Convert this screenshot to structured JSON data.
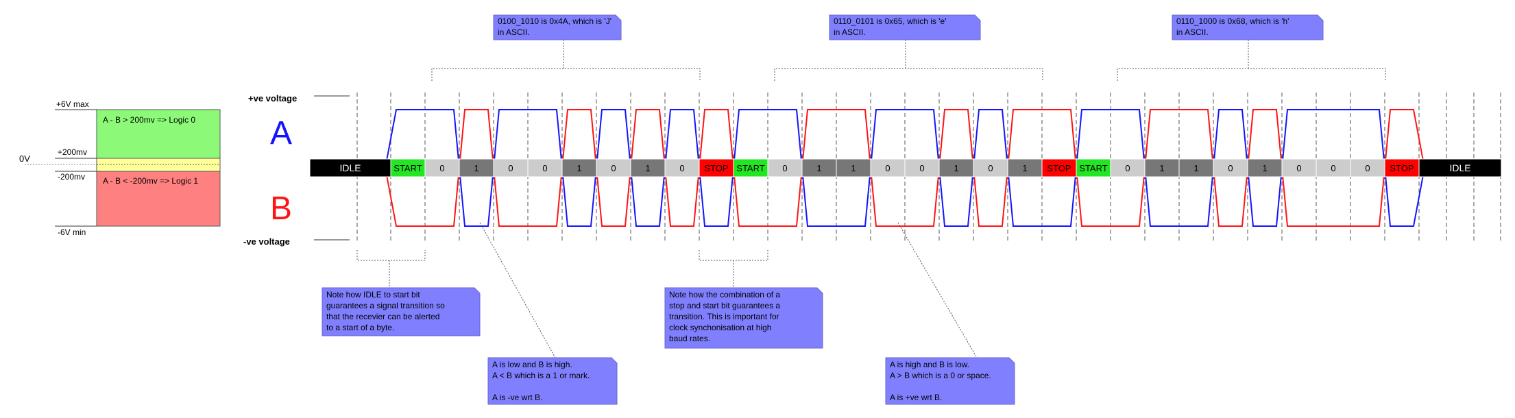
{
  "colors": {
    "wire_a": "#1414ff",
    "wire_b": "#ff1414",
    "idle_cell": "#000000",
    "start_cell": "#22e622",
    "stop_cell": "#ff0000",
    "bit0_cell": "#cccccc",
    "bit1_cell": "#777777",
    "note_bg": "#8080ff",
    "zone_logic0": "#8cfa78",
    "zone_threshold": "#ffff99",
    "zone_logic1": "#ff8080"
  },
  "legend": {
    "plus_6v": "+6V max",
    "plus_200mv": "+200mv",
    "zero_v": "0V",
    "minus_200mv": "-200mv",
    "minus_6v": "-6V min",
    "logic0_text": "A - B > 200mv => Logic 0",
    "logic1_text": "A - B < -200mv => Logic 1"
  },
  "rails": {
    "positive": "+ve voltage",
    "negative": "-ve voltage"
  },
  "signals": {
    "a_label": "A",
    "b_label": "B"
  },
  "bitstream": [
    {
      "label": "IDLE",
      "kind": "idle",
      "level": "idle"
    },
    {
      "label": "START",
      "kind": "start",
      "level": 0
    },
    {
      "label": "0",
      "kind": "bit0",
      "level": 0
    },
    {
      "label": "1",
      "kind": "bit1",
      "level": 1
    },
    {
      "label": "0",
      "kind": "bit0",
      "level": 0
    },
    {
      "label": "0",
      "kind": "bit0",
      "level": 0
    },
    {
      "label": "1",
      "kind": "bit1",
      "level": 1
    },
    {
      "label": "0",
      "kind": "bit0",
      "level": 0
    },
    {
      "label": "1",
      "kind": "bit1",
      "level": 1
    },
    {
      "label": "0",
      "kind": "bit0",
      "level": 0
    },
    {
      "label": "STOP",
      "kind": "stop",
      "level": 1
    },
    {
      "label": "START",
      "kind": "start",
      "level": 0
    },
    {
      "label": "0",
      "kind": "bit0",
      "level": 0
    },
    {
      "label": "1",
      "kind": "bit1",
      "level": 1
    },
    {
      "label": "1",
      "kind": "bit1",
      "level": 1
    },
    {
      "label": "0",
      "kind": "bit0",
      "level": 0
    },
    {
      "label": "0",
      "kind": "bit0",
      "level": 0
    },
    {
      "label": "1",
      "kind": "bit1",
      "level": 1
    },
    {
      "label": "0",
      "kind": "bit0",
      "level": 0
    },
    {
      "label": "1",
      "kind": "bit1",
      "level": 1
    },
    {
      "label": "STOP",
      "kind": "stop",
      "level": 1
    },
    {
      "label": "START",
      "kind": "start",
      "level": 0
    },
    {
      "label": "0",
      "kind": "bit0",
      "level": 0
    },
    {
      "label": "1",
      "kind": "bit1",
      "level": 1
    },
    {
      "label": "1",
      "kind": "bit1",
      "level": 1
    },
    {
      "label": "0",
      "kind": "bit0",
      "level": 0
    },
    {
      "label": "1",
      "kind": "bit1",
      "level": 1
    },
    {
      "label": "0",
      "kind": "bit0",
      "level": 0
    },
    {
      "label": "0",
      "kind": "bit0",
      "level": 0
    },
    {
      "label": "0",
      "kind": "bit0",
      "level": 0
    },
    {
      "label": "STOP",
      "kind": "stop",
      "level": 1
    },
    {
      "label": "IDLE",
      "kind": "idle",
      "level": "idle"
    }
  ],
  "byte_notes": [
    {
      "line1": "0100_1010 is 0x4A, which is 'J'",
      "line2": "in ASCII."
    },
    {
      "line1": "0110_0101 is 0x65, which is 'e'",
      "line2": "in ASCII."
    },
    {
      "line1": "0110_1000 is 0x68, which is 'h'",
      "line2": "in ASCII."
    }
  ],
  "callouts": {
    "idle_start": [
      "Note how IDLE to start bit",
      "guarantees a signal transition so",
      "that the recevier can be alerted",
      "to a start of a byte."
    ],
    "stop_start": [
      "Note how the combination of a",
      "stop and start bit guarantees a",
      "transition. This is important for",
      "clock synchonisation at high",
      "baud rates."
    ],
    "logic_one": [
      "A is low and B is high.",
      "A < B which is a 1 or mark.",
      "",
      "A is -ve wrt B."
    ],
    "logic_zero": [
      "A is high and B is low.",
      "A > B which is a 0 or space.",
      "",
      "A is +ve wrt B."
    ]
  }
}
